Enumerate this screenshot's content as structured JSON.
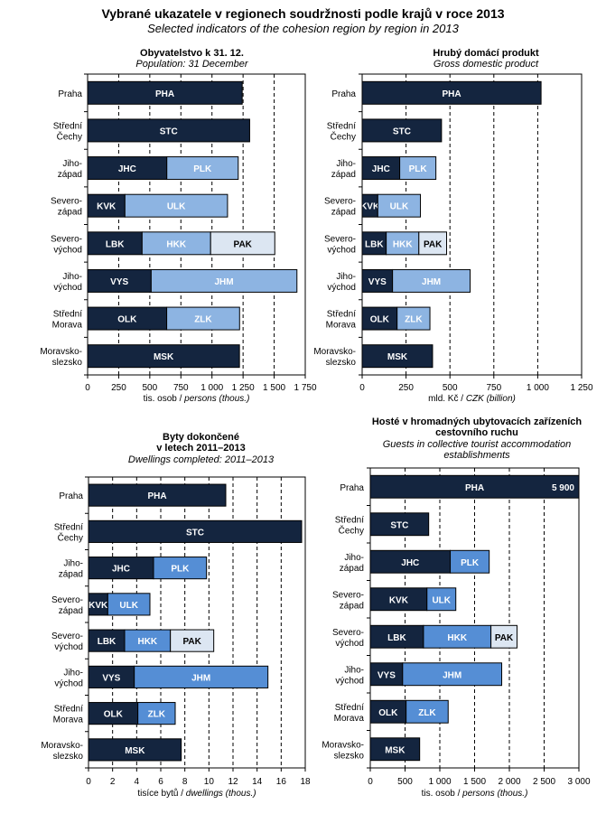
{
  "header": {
    "title": "Vybrané ukazatele v regionech soudržnosti podle krajů v roce 2013",
    "subtitle": "Selected indicators of the cohesion region by region in 2013"
  },
  "colors": {
    "dark": "#14253F",
    "light_a": "#8DB4E2",
    "light_b": "#558ED5",
    "pale": "#DCE6F2"
  },
  "categories": [
    [
      "Praha"
    ],
    [
      "Střední",
      "Čechy"
    ],
    [
      "Jiho-",
      "západ"
    ],
    [
      "Severo-",
      "západ"
    ],
    [
      "Severo-",
      "východ"
    ],
    [
      "Jiho-",
      "východ"
    ],
    [
      "Střední",
      "Morava"
    ],
    [
      "Moravsko-",
      "slezsko"
    ]
  ],
  "chart_data": [
    {
      "type": "bar",
      "stacked": true,
      "orientation": "horizontal",
      "title": "Obyvatelstvo k 31. 12.",
      "subtitle": "Population: 31 December",
      "xlabel_cz": "tis. osob / ",
      "xlabel_en": "persons (thous.)",
      "xlim": [
        0,
        1750
      ],
      "xticks": [
        0,
        250,
        500,
        750,
        1000,
        1250,
        1500,
        1750
      ],
      "xtick_labels": [
        "0",
        "250",
        "500",
        "750",
        "1 000",
        "1 250",
        "1 500",
        "1 750"
      ],
      "grid": "vertical-dashed",
      "palette": [
        "dark",
        "light_a",
        "pale"
      ],
      "categories": [
        "Praha",
        "Střední Čechy",
        "Jihozápad",
        "Severozápad",
        "Severovýchod",
        "Jihovýchod",
        "Střední Morava",
        "Moravskoslezsko"
      ],
      "bars": [
        [
          {
            "label": "PHA",
            "value": 1243
          }
        ],
        [
          {
            "label": "STC",
            "value": 1303
          }
        ],
        [
          {
            "label": "JHC",
            "value": 637
          },
          {
            "label": "PLK",
            "value": 574
          }
        ],
        [
          {
            "label": "KVK",
            "value": 300
          },
          {
            "label": "ULK",
            "value": 825
          }
        ],
        [
          {
            "label": "LBK",
            "value": 438
          },
          {
            "label": "HKK",
            "value": 551
          },
          {
            "label": "PAK",
            "value": 516
          }
        ],
        [
          {
            "label": "VYS",
            "value": 511
          },
          {
            "label": "JHM",
            "value": 1172
          }
        ],
        [
          {
            "label": "OLK",
            "value": 636
          },
          {
            "label": "ZLK",
            "value": 586
          }
        ],
        [
          {
            "label": "MSK",
            "value": 1221
          }
        ]
      ]
    },
    {
      "type": "bar",
      "stacked": true,
      "orientation": "horizontal",
      "title": "Hrubý domácí produkt",
      "subtitle": "Gross domestic product",
      "xlabel_cz": "mld. Kč / ",
      "xlabel_en": "CZK (billion)",
      "xlim": [
        0,
        1250
      ],
      "xticks": [
        0,
        250,
        500,
        750,
        1000,
        1250
      ],
      "xtick_labels": [
        "0",
        "250",
        "500",
        "750",
        "1 000",
        "1 250"
      ],
      "grid": "vertical-dashed",
      "palette": [
        "dark",
        "light_a",
        "pale"
      ],
      "categories": [
        "Praha",
        "Střední Čechy",
        "Jihozápad",
        "Severozápad",
        "Severovýchod",
        "Jihovýchod",
        "Střední Morava",
        "Moravskoslezsko"
      ],
      "bars": [
        [
          {
            "label": "PHA",
            "value": 1019
          }
        ],
        [
          {
            "label": "STC",
            "value": 452
          }
        ],
        [
          {
            "label": "JHC",
            "value": 214
          },
          {
            "label": "PLK",
            "value": 206
          }
        ],
        [
          {
            "label": "KVK",
            "value": 89
          },
          {
            "label": "ULK",
            "value": 243
          }
        ],
        [
          {
            "label": "LBK",
            "value": 137
          },
          {
            "label": "HKK",
            "value": 186
          },
          {
            "label": "PAK",
            "value": 158
          }
        ],
        [
          {
            "label": "VYS",
            "value": 173
          },
          {
            "label": "JHM",
            "value": 442
          }
        ],
        [
          {
            "label": "OLK",
            "value": 199
          },
          {
            "label": "ZLK",
            "value": 187
          }
        ],
        [
          {
            "label": "MSK",
            "value": 401
          }
        ]
      ]
    },
    {
      "type": "bar",
      "stacked": true,
      "orientation": "horizontal",
      "title": "Byty dokončené\nv letech 2011–2013",
      "subtitle": "Dwellings completed: 2011–2013",
      "xlabel_cz": "tisíce bytů / ",
      "xlabel_en": "dwellings (thous.)",
      "xlim": [
        0,
        18
      ],
      "xticks": [
        0,
        2,
        4,
        6,
        8,
        10,
        12,
        14,
        16,
        18
      ],
      "xtick_labels": [
        "0",
        "2",
        "4",
        "6",
        "8",
        "10",
        "12",
        "14",
        "16",
        "18"
      ],
      "grid": "vertical-dashed",
      "palette": [
        "dark",
        "light_b",
        "pale"
      ],
      "categories": [
        "Praha",
        "Střední Čechy",
        "Jihozápad",
        "Severozápad",
        "Severovýchod",
        "Jihovýchod",
        "Střední Morava",
        "Moravskoslezsko"
      ],
      "bars": [
        [
          {
            "label": "PHA",
            "value": 11.4
          }
        ],
        [
          {
            "label": "STC",
            "value": 17.7
          }
        ],
        [
          {
            "label": "JHC",
            "value": 5.4
          },
          {
            "label": "PLK",
            "value": 4.4
          }
        ],
        [
          {
            "label": "KVK",
            "value": 1.6
          },
          {
            "label": "ULK",
            "value": 3.5
          }
        ],
        [
          {
            "label": "LBK",
            "value": 3.0
          },
          {
            "label": "HKK",
            "value": 3.8
          },
          {
            "label": "PAK",
            "value": 3.6
          }
        ],
        [
          {
            "label": "VYS",
            "value": 3.8
          },
          {
            "label": "JHM",
            "value": 11.1
          }
        ],
        [
          {
            "label": "OLK",
            "value": 4.1
          },
          {
            "label": "ZLK",
            "value": 3.1
          }
        ],
        [
          {
            "label": "MSK",
            "value": 7.7
          }
        ]
      ]
    },
    {
      "type": "bar",
      "stacked": true,
      "orientation": "horizontal",
      "title": "Hosté v hromadných ubytovacích zařízeních\ncestovního ruchu",
      "subtitle": "Guests in collective tourist accommodation\nestablishments",
      "xlabel_cz": "tis. osob / ",
      "xlabel_en": "persons (thous.)",
      "xlim": [
        0,
        3000
      ],
      "xticks": [
        0,
        500,
        1000,
        1500,
        2000,
        2500,
        3000
      ],
      "xtick_labels": [
        "0",
        "500",
        "1 000",
        "1 500",
        "2 000",
        "2 500",
        "3 000"
      ],
      "grid": "vertical-dashed",
      "palette": [
        "dark",
        "light_b",
        "pale"
      ],
      "categories": [
        "Praha",
        "Střední Čechy",
        "Jihozápad",
        "Severozápad",
        "Severovýchod",
        "Jihovýchod",
        "Střední Morava",
        "Moravskoslezsko"
      ],
      "annotations": [
        {
          "category": "Praha",
          "text": "5 900",
          "note": "bar truncated at axis maximum"
        }
      ],
      "bars": [
        [
          {
            "label": "PHA",
            "value": 5900
          }
        ],
        [
          {
            "label": "STC",
            "value": 840
          }
        ],
        [
          {
            "label": "JHC",
            "value": 1150
          },
          {
            "label": "PLK",
            "value": 560
          }
        ],
        [
          {
            "label": "KVK",
            "value": 815
          },
          {
            "label": "ULK",
            "value": 415
          }
        ],
        [
          {
            "label": "LBK",
            "value": 765
          },
          {
            "label": "HKK",
            "value": 970
          },
          {
            "label": "PAK",
            "value": 375
          }
        ],
        [
          {
            "label": "VYS",
            "value": 465
          },
          {
            "label": "JHM",
            "value": 1425
          }
        ],
        [
          {
            "label": "OLK",
            "value": 515
          },
          {
            "label": "ZLK",
            "value": 605
          }
        ],
        [
          {
            "label": "MSK",
            "value": 710
          }
        ]
      ]
    }
  ]
}
